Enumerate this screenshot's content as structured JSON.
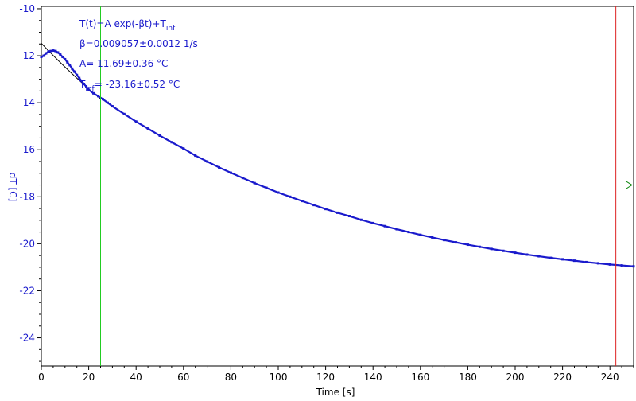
{
  "chart_data": {
    "type": "scatter",
    "xlabel": "Time [s]",
    "ylabel": "dT [C]",
    "xlim": [
      0,
      250
    ],
    "ylim": [
      -25.2,
      -9.9
    ],
    "x_ticks": [
      0,
      20,
      40,
      60,
      80,
      100,
      120,
      140,
      160,
      180,
      200,
      220,
      240
    ],
    "y_ticks": [
      -24,
      -22,
      -20,
      -18,
      -16,
      -14,
      -12,
      -10
    ],
    "grid": false,
    "series": [
      {
        "kind": "measured",
        "color": "#1a1acc",
        "x": [
          0,
          1,
          2,
          3,
          4,
          5,
          6,
          7,
          8,
          9,
          10,
          11,
          12,
          13,
          14,
          15,
          16,
          17,
          18,
          19,
          20,
          22,
          24,
          26,
          28,
          30,
          35,
          40,
          45,
          50,
          55,
          60,
          65,
          70,
          75,
          80,
          85,
          90,
          95,
          100,
          105,
          110,
          115,
          120,
          125,
          130,
          135,
          140,
          145,
          150,
          155,
          160,
          165,
          170,
          175,
          180,
          185,
          190,
          195,
          200,
          205,
          210,
          215,
          220,
          225,
          230,
          235,
          240,
          245,
          250
        ],
        "y": [
          -12.05,
          -12.0,
          -11.9,
          -11.82,
          -11.8,
          -11.78,
          -11.8,
          -11.86,
          -11.95,
          -12.05,
          -12.15,
          -12.28,
          -12.4,
          -12.55,
          -12.68,
          -12.82,
          -12.95,
          -13.08,
          -13.2,
          -13.33,
          -13.45,
          -13.6,
          -13.72,
          -13.85,
          -14.0,
          -14.15,
          -14.48,
          -14.8,
          -15.1,
          -15.4,
          -15.68,
          -15.95,
          -16.25,
          -16.5,
          -16.75,
          -16.98,
          -17.2,
          -17.42,
          -17.62,
          -17.82,
          -18.0,
          -18.18,
          -18.35,
          -18.52,
          -18.68,
          -18.82,
          -18.98,
          -19.12,
          -19.25,
          -19.38,
          -19.5,
          -19.62,
          -19.73,
          -19.84,
          -19.94,
          -20.04,
          -20.13,
          -20.22,
          -20.3,
          -20.38,
          -20.46,
          -20.53,
          -20.6,
          -20.66,
          -20.72,
          -20.78,
          -20.83,
          -20.88,
          -20.92,
          -20.96
        ]
      }
    ],
    "fit": {
      "color": "#000000",
      "A": 11.69,
      "beta": 0.009057,
      "T_inf": -23.16,
      "x_range": [
        0,
        25
      ]
    },
    "annotations": {
      "formula_main": "T(t)=A exp(-βt)+T",
      "formula_sub": "inf",
      "beta_line": "β=0.009057±0.0012 1/s",
      "a_line": "A= 11.69±0.36 °C",
      "tinf_main": "T",
      "tinf_sub": "inf",
      "tinf_rest": "= -23.16±0.52 °C"
    },
    "cursors": {
      "vertical_green": {
        "x": 25,
        "color": "#22cc22"
      },
      "vertical_red": {
        "x": 242.5,
        "color": "#dd2222"
      },
      "horizontal_green": {
        "y": -17.5,
        "color": "#118811"
      }
    },
    "colors": {
      "tick_label": "#1a1acc",
      "data": "#1a1acc",
      "axis": "#000000"
    }
  }
}
